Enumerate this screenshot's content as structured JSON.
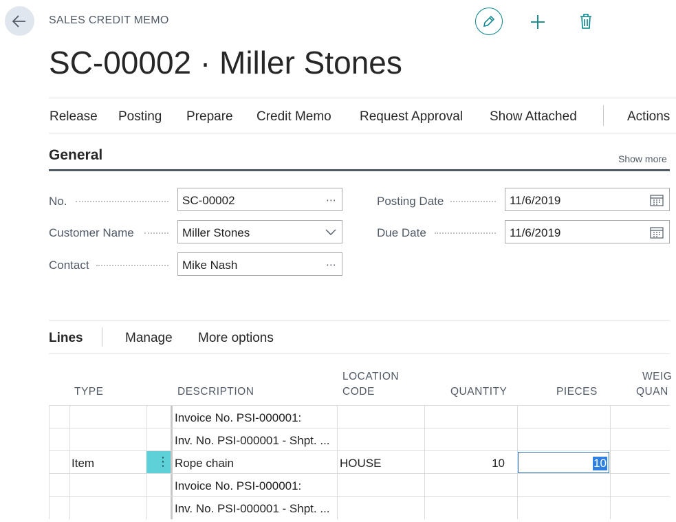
{
  "header": {
    "caption": "SALES CREDIT MEMO",
    "title": "SC-00002 · Miller Stones"
  },
  "toolbar": {
    "back_icon": "arrow-left-icon",
    "edit_icon": "pencil-icon",
    "new_icon": "plus-icon",
    "delete_icon": "trash-icon",
    "accent": "#00838a"
  },
  "actions": [
    "Release",
    "Posting",
    "Prepare",
    "Credit Memo",
    "Request Approval",
    "Show Attached",
    "Actions"
  ],
  "general": {
    "heading": "General",
    "show_more": "Show more",
    "no": {
      "label": "No.",
      "value": "SC-00002"
    },
    "customer_name": {
      "label": "Customer Name",
      "value": "Miller Stones"
    },
    "contact": {
      "label": "Contact",
      "value": "Mike Nash"
    },
    "posting_date": {
      "label": "Posting Date",
      "value": "11/6/2019"
    },
    "due_date": {
      "label": "Due Date",
      "value": "11/6/2019"
    }
  },
  "lines": {
    "tabs": [
      "Lines",
      "Manage",
      "More options"
    ],
    "columns": {
      "type": "TYPE",
      "description": "DESCRIPTION",
      "location_1": "LOCATION",
      "location_2": "CODE",
      "quantity": "QUANTITY",
      "pieces": "PIECES",
      "weight_1": "WEIG",
      "weight_2": "QUAN"
    },
    "rows": [
      {
        "type": "",
        "description": "Invoice No. PSI-000001:",
        "location": "",
        "quantity": "",
        "pieces": ""
      },
      {
        "type": "",
        "description": "Inv. No. PSI-000001 - Shpt. ...",
        "location": "",
        "quantity": "",
        "pieces": ""
      },
      {
        "type": "Item",
        "description": "Rope chain",
        "location": "HOUSE",
        "quantity": "10",
        "pieces": "10"
      },
      {
        "type": "",
        "description": "Invoice No. PSI-000001:",
        "location": "",
        "quantity": "",
        "pieces": ""
      },
      {
        "type": "",
        "description": "Inv. No. PSI-000001 - Shpt. ...",
        "location": "",
        "quantity": "",
        "pieces": ""
      }
    ]
  }
}
